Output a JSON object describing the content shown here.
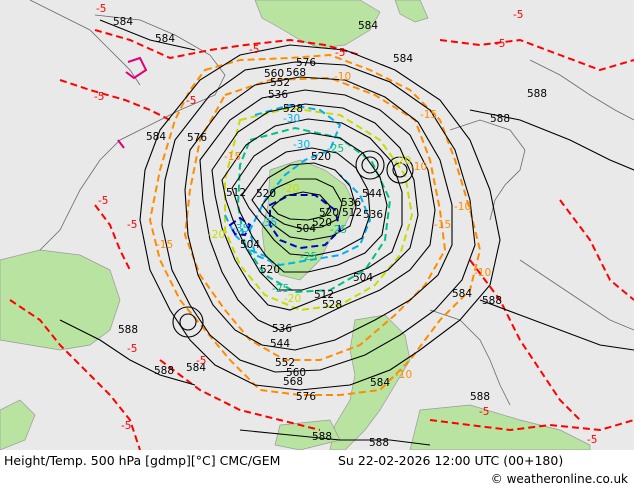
{
  "footer": {
    "title": "Height/Temp. 500 hPa [gdmp][°C] CMC/GEM",
    "datetime": "Su 22-02-2026 12:00 UTC (00+180)",
    "credit": "© weatheronline.co.uk"
  },
  "colors": {
    "land": "#b9e3a0",
    "sea": "#e9e9e9",
    "height_contour": "#000000",
    "temp_warm": "#ff0000",
    "temp_mid": "#ff8c00",
    "temp_cold_yellow": "#c8dc00",
    "temp_cold_green": "#00c08a",
    "temp_cold_cyan": "#00b0f0",
    "temp_cold_blue": "#0000cc",
    "marker": "#e0007a"
  },
  "map": {
    "height_labels": [
      "584",
      "584",
      "584",
      "576",
      "568",
      "560",
      "552",
      "536",
      "528",
      "520",
      "512",
      "504",
      "544",
      "584",
      "588",
      "588",
      "576",
      "588",
      "588",
      "584",
      "520",
      "504",
      "536",
      "544",
      "552",
      "560",
      "568",
      "576",
      "584",
      "588",
      "588",
      "536",
      "528",
      "520",
      "512",
      "504",
      "520",
      "536",
      "512",
      "520",
      "588",
      "584",
      "584",
      "588"
    ],
    "temp_labels": [
      "-5",
      "-5",
      "-5",
      "-5",
      "-10",
      "-15",
      "-20",
      "-25",
      "-30",
      "-35",
      "-5",
      "-5",
      "-10",
      "-15",
      "-20",
      "-25",
      "-30",
      "-35",
      "-5",
      "-10",
      "-15",
      "-20",
      "-25",
      "-10",
      "-5",
      "-5",
      "-5",
      "-5",
      "-5",
      "-5",
      "-5",
      "-10",
      "-15",
      "-20",
      "-25"
    ]
  }
}
